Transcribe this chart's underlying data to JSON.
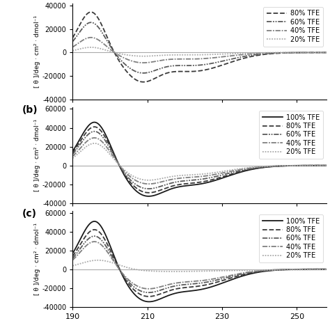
{
  "xlim": [
    190,
    258
  ],
  "xticks": [
    190,
    210,
    230,
    250
  ],
  "ylim_a": [
    -40000,
    42000
  ],
  "ylim_bc": [
    -40000,
    62000
  ],
  "yticks_a": [
    -40000,
    -20000,
    0,
    20000,
    40000
  ],
  "yticks_bc": [
    -40000,
    -20000,
    0,
    20000,
    40000,
    60000
  ],
  "ylabel": "[ θ ]/deg · cm² · dmol⁻¹",
  "background_color": "#ffffff",
  "legend_labels_a": [
    "80% TFE",
    "60% TFE",
    "40% TFE",
    "20% TFE"
  ],
  "legend_labels_bc": [
    "100% TFE",
    "80% TFE",
    "60% TFE",
    "40% TFE",
    "20% TFE"
  ],
  "colors_dark": [
    "#1a1a1a",
    "#3a3a3a",
    "#606060",
    "#909090",
    "#b0b0b0"
  ],
  "hline_color": "#aaaaaa"
}
